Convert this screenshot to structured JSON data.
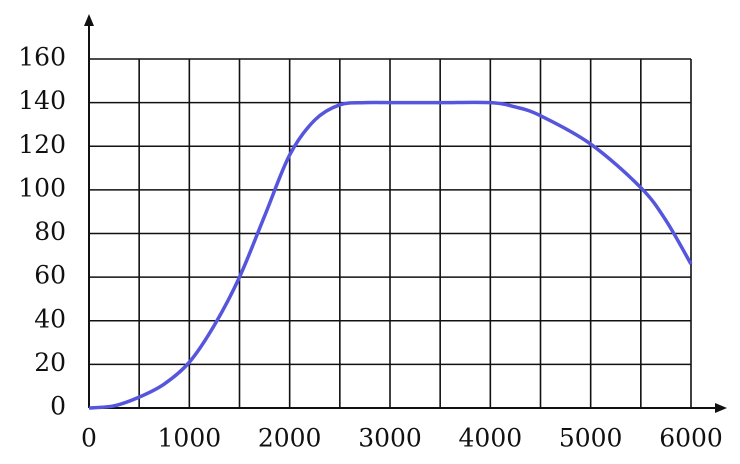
{
  "chart_data": {
    "type": "line",
    "x": [
      0,
      250,
      500,
      750,
      1000,
      1250,
      1500,
      1750,
      2000,
      2250,
      2500,
      2750,
      3000,
      3500,
      4000,
      4250,
      4500,
      5000,
      5500,
      5750,
      6000
    ],
    "series": [
      {
        "color": "#5555dd",
        "values": [
          0,
          1,
          5,
          11,
          21,
          38,
          60,
          88,
          116,
          132,
          139,
          140,
          140,
          140,
          140,
          138,
          134,
          121,
          101,
          86,
          66
        ]
      }
    ],
    "xlim": [
      0,
      6000
    ],
    "ylim": [
      0,
      160
    ],
    "xticks": [
      0,
      1000,
      2000,
      3000,
      4000,
      5000,
      6000
    ],
    "yticks": [
      0,
      20,
      40,
      60,
      80,
      100,
      120,
      140,
      160
    ],
    "xgrid": [
      0,
      500,
      1000,
      1500,
      2000,
      2500,
      3000,
      3500,
      4000,
      4500,
      5000,
      5500,
      6000
    ],
    "grid": true
  }
}
